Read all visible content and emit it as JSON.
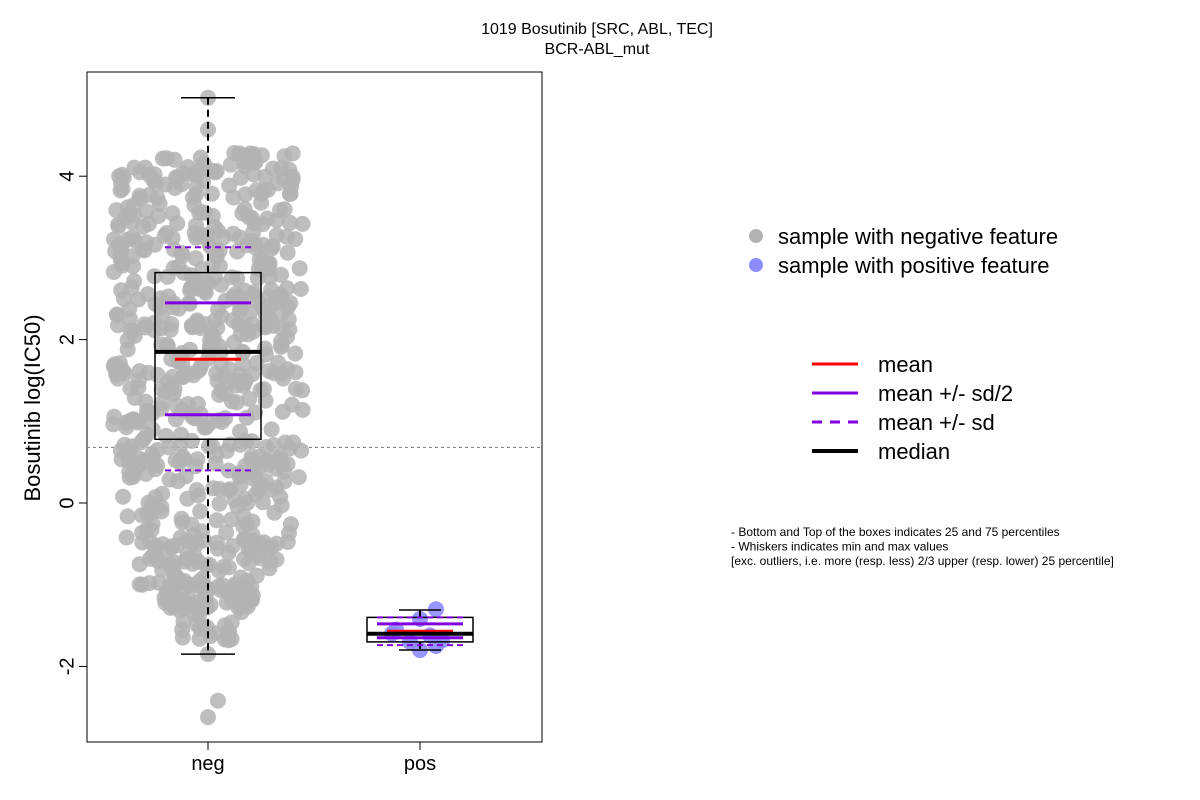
{
  "chart_data": {
    "type": "box",
    "title": "1019 Bosutinib [SRC, ABL, TEC]",
    "subtitle": "BCR-ABL_mut",
    "ylabel": "Bosutinib log(IC50)",
    "xlabel": "",
    "ylim": [
      -2.9,
      5.2
    ],
    "yticks": [
      -2,
      0,
      2,
      4
    ],
    "ytick_labels": [
      "-2",
      "0",
      "2",
      "4"
    ],
    "categories": [
      "neg",
      "pos"
    ],
    "threshold_line": 0.68,
    "boxes": [
      {
        "category": "neg",
        "whisker_low": -1.85,
        "q1": 0.78,
        "median": 1.85,
        "q3": 2.82,
        "whisker_high": 4.96,
        "mean": 1.76,
        "mean_minus_half_sd": 1.08,
        "mean_plus_half_sd": 2.45,
        "mean_minus_sd": 0.4,
        "mean_plus_sd": 3.13,
        "point_color": "#b3b3b3",
        "point_count": 690,
        "outliers": [
          -2.42,
          -2.62
        ]
      },
      {
        "category": "pos",
        "whisker_low": -1.8,
        "q1": -1.7,
        "median": -1.6,
        "q3": -1.4,
        "whisker_high": -1.31,
        "mean": -1.57,
        "mean_minus_half_sd": -1.65,
        "mean_plus_half_sd": -1.48,
        "mean_minus_sd": -1.74,
        "mean_plus_sd": -1.4,
        "point_color": "#8c8cff",
        "points": [
          -1.3,
          -1.42,
          -1.55,
          -1.62,
          -1.7,
          -1.75,
          -1.8,
          -1.6,
          -1.68
        ]
      }
    ],
    "legend_points": [
      {
        "label": "sample with negative feature",
        "color": "#b3b3b3"
      },
      {
        "label": "sample with positive feature",
        "color": "#8c8cff"
      }
    ],
    "legend_lines": [
      {
        "label": "mean",
        "color": "#ff0000",
        "style": "solid"
      },
      {
        "label": "mean +/- sd/2",
        "color": "#8000e0",
        "style": "solid"
      },
      {
        "label": "mean +/- sd",
        "color": "#8000e0",
        "style": "dashed"
      },
      {
        "label": "median",
        "color": "#000000",
        "style": "solid-thick"
      }
    ],
    "notes": [
      "- Bottom and Top of the boxes indicates 25 and 75 percentiles",
      "- Whiskers indicates min and max values",
      "[exc. outliers, i.e. more (resp. less) 2/3 upper (resp. lower) 25 percentile]"
    ]
  }
}
